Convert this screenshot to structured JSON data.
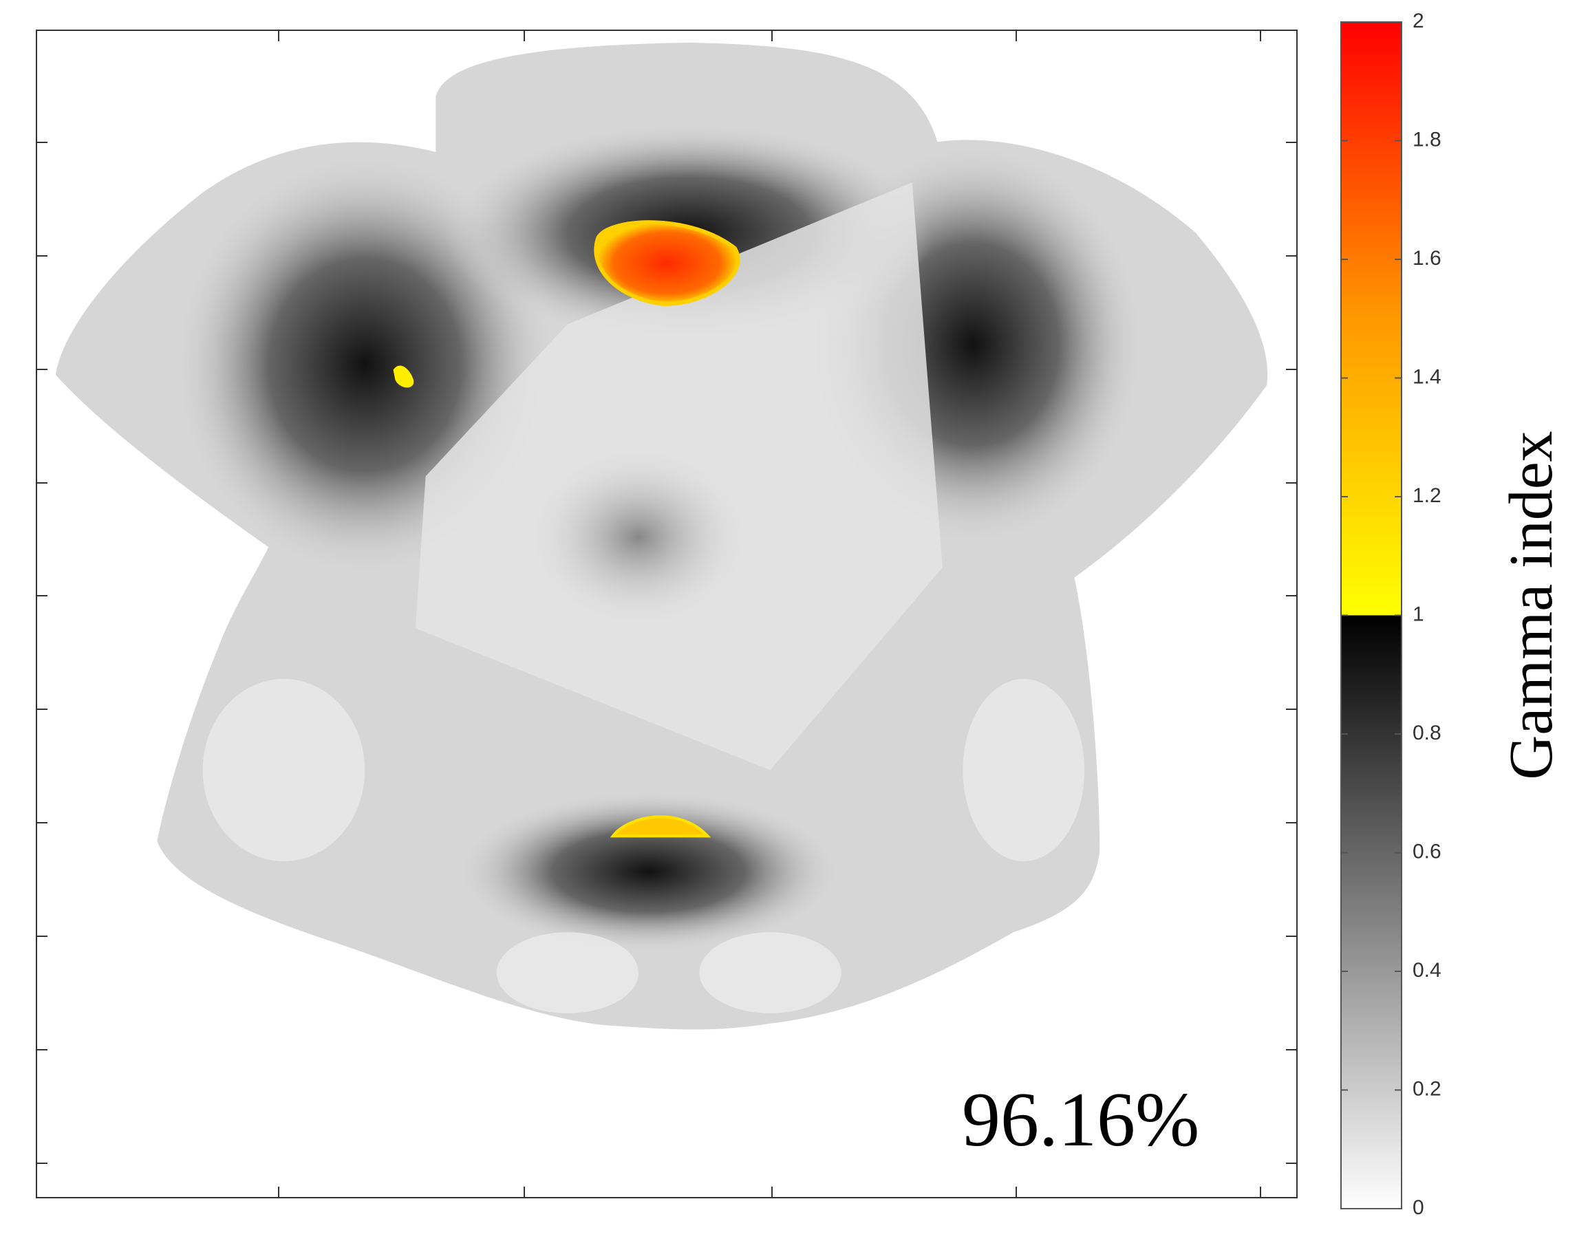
{
  "chart_data": {
    "type": "heatmap",
    "annotation": "96.16%",
    "colorbar": {
      "label": "Gamma index",
      "lim": [
        0,
        2
      ],
      "ticks": [
        0,
        0.2,
        0.4,
        0.6,
        0.8,
        1,
        1.2,
        1.4,
        1.6,
        1.8,
        2
      ]
    }
  }
}
